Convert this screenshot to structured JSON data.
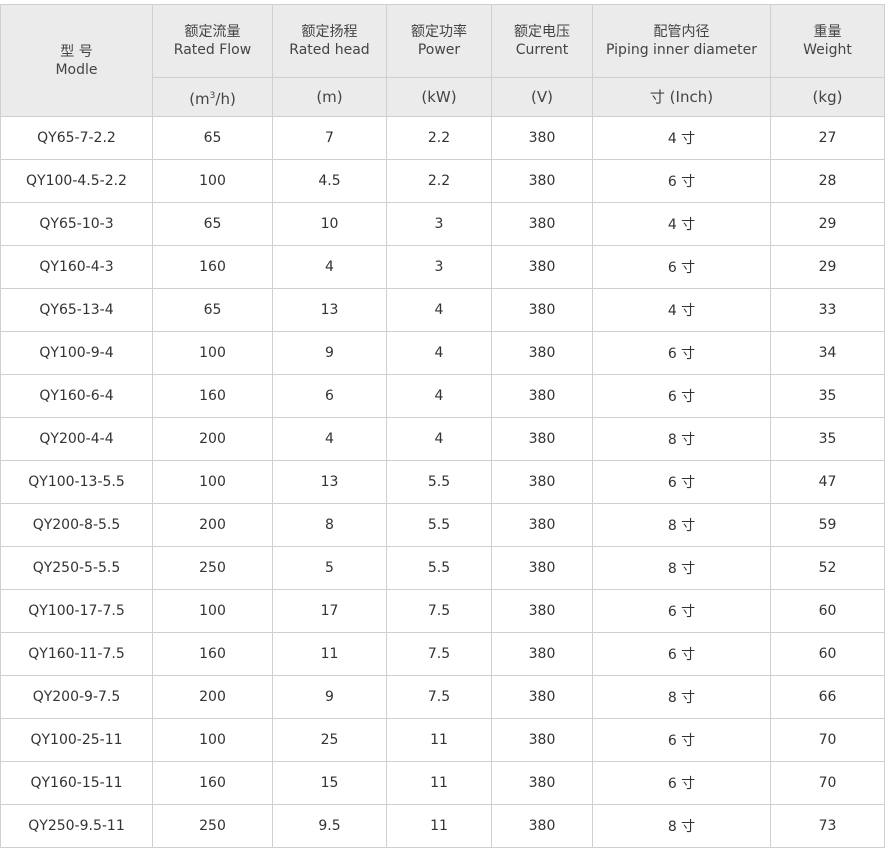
{
  "header": {
    "model": {
      "zh": "型 号",
      "en": "Modle"
    },
    "columns": [
      {
        "zh": "额定流量",
        "en": "Rated Flow",
        "unit_pre": "(m",
        "unit_sup": "3",
        "unit_post": "/h)"
      },
      {
        "zh": "额定扬程",
        "en": "Rated head",
        "unit": "(m)"
      },
      {
        "zh": "额定功率",
        "en": "Power",
        "unit": "(kW)"
      },
      {
        "zh": "额定电压",
        "en": "Current",
        "unit": "(V)"
      },
      {
        "zh": "配管内径",
        "en": "Piping inner diameter",
        "unit": "寸 (Inch)"
      },
      {
        "zh": "重量",
        "en": "Weight",
        "unit": "(kg)"
      }
    ]
  },
  "rows": [
    [
      "QY65-7-2.2",
      "65",
      "7",
      "2.2",
      "380",
      "4 寸",
      "27"
    ],
    [
      "QY100-4.5-2.2",
      "100",
      "4.5",
      "2.2",
      "380",
      "6 寸",
      "28"
    ],
    [
      "QY65-10-3",
      "65",
      "10",
      "3",
      "380",
      "4 寸",
      "29"
    ],
    [
      "QY160-4-3",
      "160",
      "4",
      "3",
      "380",
      "6 寸",
      "29"
    ],
    [
      "QY65-13-4",
      "65",
      "13",
      "4",
      "380",
      "4 寸",
      "33"
    ],
    [
      "QY100-9-4",
      "100",
      "9",
      "4",
      "380",
      "6 寸",
      "34"
    ],
    [
      "QY160-6-4",
      "160",
      "6",
      "4",
      "380",
      "6 寸",
      "35"
    ],
    [
      "QY200-4-4",
      "200",
      "4",
      "4",
      "380",
      "8 寸",
      "35"
    ],
    [
      "QY100-13-5.5",
      "100",
      "13",
      "5.5",
      "380",
      "6 寸",
      "47"
    ],
    [
      "QY200-8-5.5",
      "200",
      "8",
      "5.5",
      "380",
      "8 寸",
      "59"
    ],
    [
      "QY250-5-5.5",
      "250",
      "5",
      "5.5",
      "380",
      "8 寸",
      "52"
    ],
    [
      "QY100-17-7.5",
      "100",
      "17",
      "7.5",
      "380",
      "6 寸",
      "60"
    ],
    [
      "QY160-11-7.5",
      "160",
      "11",
      "7.5",
      "380",
      "6 寸",
      "60"
    ],
    [
      "QY200-9-7.5",
      "200",
      "9",
      "7.5",
      "380",
      "8 寸",
      "66"
    ],
    [
      "QY100-25-11",
      "100",
      "25",
      "11",
      "380",
      "6 寸",
      "70"
    ],
    [
      "QY160-15-11",
      "160",
      "15",
      "11",
      "380",
      "6 寸",
      "70"
    ],
    [
      "QY250-9.5-11",
      "250",
      "9.5",
      "11",
      "380",
      "8 寸",
      "73"
    ]
  ]
}
